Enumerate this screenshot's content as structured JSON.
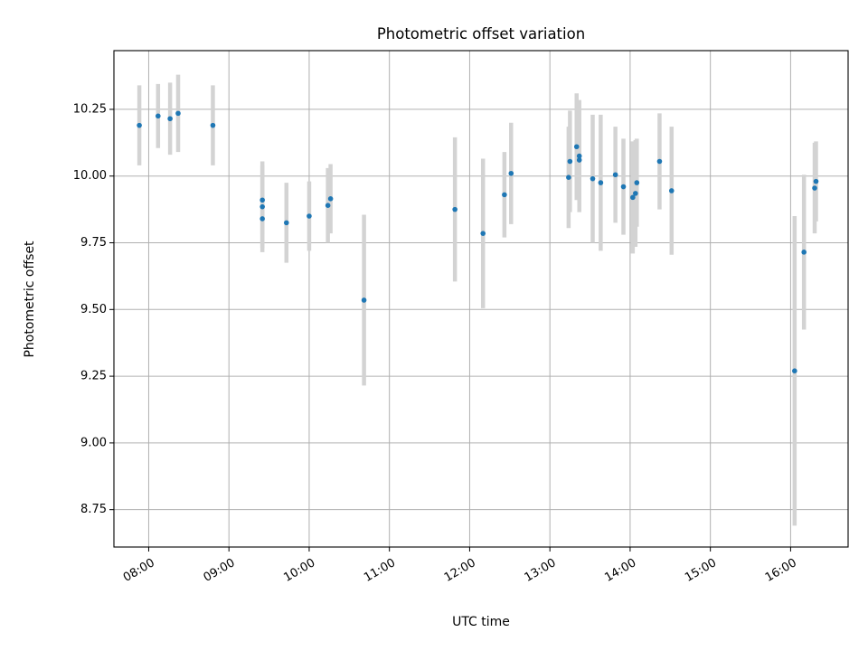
{
  "chart_data": {
    "type": "scatter",
    "title": "Photometric offset variation",
    "xlabel": "UTC time",
    "ylabel": "Photometric offset",
    "x_tick_labels": [
      "08:00",
      "09:00",
      "10:00",
      "11:00",
      "12:00",
      "13:00",
      "14:00",
      "15:00",
      "16:00"
    ],
    "y_tick_labels": [
      "8.75",
      "9.00",
      "9.25",
      "9.50",
      "9.75",
      "10.00",
      "10.25"
    ],
    "xlim": [
      "07:34",
      "16:43"
    ],
    "ylim": [
      8.61,
      10.47
    ],
    "grid": true,
    "colors": {
      "marker": "#1f77b4",
      "errorbar": "#d3d3d3",
      "grid": "#b0b0b0"
    },
    "points": [
      {
        "x": "07:53",
        "y": 10.19,
        "err": 0.15
      },
      {
        "x": "08:07",
        "y": 10.225,
        "err": 0.12
      },
      {
        "x": "08:16",
        "y": 10.215,
        "err": 0.135
      },
      {
        "x": "08:22",
        "y": 10.235,
        "err": 0.145
      },
      {
        "x": "08:48",
        "y": 10.19,
        "err": 0.15
      },
      {
        "x": "09:25",
        "y": 9.91,
        "err": 0.13
      },
      {
        "x": "09:25",
        "y": 9.885,
        "err": 0.17
      },
      {
        "x": "09:25",
        "y": 9.84,
        "err": 0.11
      },
      {
        "x": "09:43",
        "y": 9.825,
        "err": 0.15
      },
      {
        "x": "10:00",
        "y": 9.85,
        "err": 0.13
      },
      {
        "x": "10:14",
        "y": 9.89,
        "err": 0.14
      },
      {
        "x": "10:16",
        "y": 9.915,
        "err": 0.13
      },
      {
        "x": "10:41",
        "y": 9.535,
        "err": 0.32
      },
      {
        "x": "11:49",
        "y": 9.875,
        "err": 0.27
      },
      {
        "x": "12:10",
        "y": 9.785,
        "err": 0.28
      },
      {
        "x": "12:26",
        "y": 9.93,
        "err": 0.16
      },
      {
        "x": "12:31",
        "y": 10.01,
        "err": 0.19
      },
      {
        "x": "13:14",
        "y": 9.995,
        "err": 0.19
      },
      {
        "x": "13:15",
        "y": 10.055,
        "err": 0.19
      },
      {
        "x": "13:20",
        "y": 10.11,
        "err": 0.2
      },
      {
        "x": "13:22",
        "y": 10.06,
        "err": 0.145
      },
      {
        "x": "13:22",
        "y": 10.075,
        "err": 0.21
      },
      {
        "x": "13:32",
        "y": 9.99,
        "err": 0.24
      },
      {
        "x": "13:38",
        "y": 9.975,
        "err": 0.255
      },
      {
        "x": "13:49",
        "y": 10.005,
        "err": 0.18
      },
      {
        "x": "13:55",
        "y": 9.96,
        "err": 0.18
      },
      {
        "x": "14:02",
        "y": 9.92,
        "err": 0.21
      },
      {
        "x": "14:04",
        "y": 9.935,
        "err": 0.2
      },
      {
        "x": "14:05",
        "y": 9.975,
        "err": 0.165
      },
      {
        "x": "14:22",
        "y": 10.055,
        "err": 0.18
      },
      {
        "x": "14:31",
        "y": 9.945,
        "err": 0.24
      },
      {
        "x": "16:03",
        "y": 9.27,
        "err": 0.58
      },
      {
        "x": "16:10",
        "y": 9.715,
        "err": 0.29
      },
      {
        "x": "16:18",
        "y": 9.955,
        "err": 0.17
      },
      {
        "x": "16:19",
        "y": 9.98,
        "err": 0.15
      }
    ]
  }
}
